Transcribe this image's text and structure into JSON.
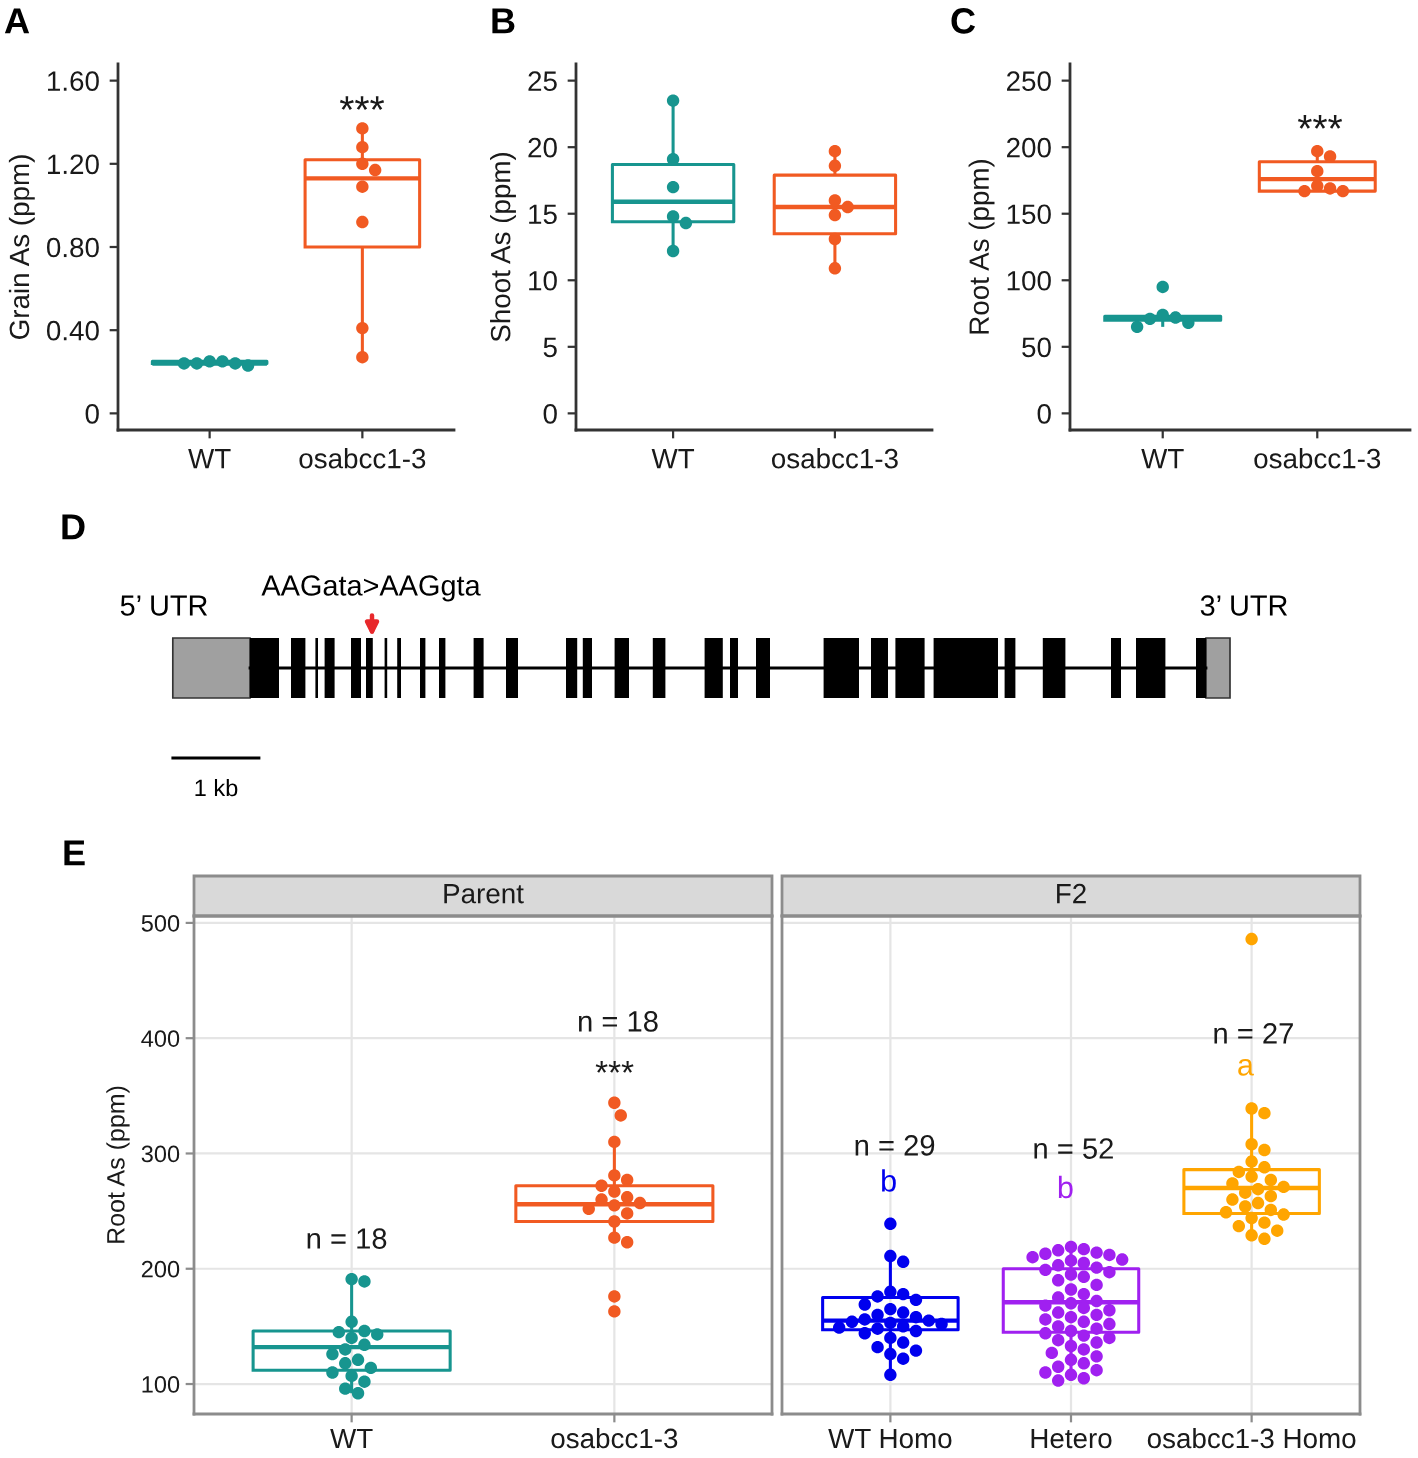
{
  "chart_data": [
    {
      "type": "box",
      "title": "A",
      "ylabel": "Grain As (ppm)",
      "categories": [
        "WT",
        "osabcc1-3"
      ],
      "colors": [
        "#17958f",
        "#f15a22"
      ],
      "boxes": [
        {
          "low": 0.23,
          "q1": 0.24,
          "median": 0.24,
          "q3": 0.25,
          "high": 0.25
        },
        {
          "low": 0.27,
          "q1": 0.8,
          "median": 1.13,
          "q3": 1.22,
          "high": 1.37
        }
      ],
      "series": [
        {
          "type": "scatter",
          "color": "#17958f",
          "x": [
            "WT",
            "WT",
            "WT",
            "WT",
            "WT",
            "WT"
          ],
          "values": [
            0.25,
            0.25,
            0.24,
            0.24,
            0.24,
            0.23
          ]
        },
        {
          "type": "scatter",
          "color": "#f15a22",
          "x": [
            "osabcc1-3",
            "osabcc1-3",
            "osabcc1-3",
            "osabcc1-3",
            "osabcc1-3",
            "osabcc1-3",
            "osabcc1-3",
            "osabcc1-3"
          ],
          "values": [
            1.37,
            1.28,
            1.2,
            1.17,
            1.09,
            0.92,
            0.41,
            0.27
          ]
        }
      ],
      "marker": "circle",
      "ylim": [
        -0.08,
        1.68
      ],
      "yticks": [
        0,
        {
          "value": 0.4,
          "label": "0.40"
        },
        {
          "value": 0.8,
          "label": "0.80"
        },
        {
          "value": 1.2,
          "label": "1.20"
        },
        {
          "value": 1.6,
          "label": "1.60"
        }
      ],
      "annotations": [
        "***"
      ]
    },
    {
      "type": "box",
      "title": "B",
      "ylabel": "Shoot As (ppm)",
      "categories": [
        "WT",
        "osabcc1-3"
      ],
      "colors": [
        "#17958f",
        "#f15a22"
      ],
      "boxes": [
        {
          "low": 12.2,
          "q1": 14.4,
          "median": 15.9,
          "q3": 18.7,
          "high": 23.5
        },
        {
          "low": 10.9,
          "q1": 13.5,
          "median": 15.5,
          "q3": 17.9,
          "high": 19.7
        }
      ],
      "series": [
        {
          "type": "scatter",
          "color": "#17958f",
          "x": [
            "WT",
            "WT",
            "WT",
            "WT",
            "WT",
            "WT"
          ],
          "values": [
            23.5,
            19.1,
            17,
            14.8,
            14.3,
            12.2
          ]
        },
        {
          "type": "scatter",
          "color": "#f15a22",
          "x": [
            "osabcc1-3",
            "osabcc1-3",
            "osabcc1-3",
            "osabcc1-3",
            "osabcc1-3",
            "osabcc1-3",
            "osabcc1-3"
          ],
          "values": [
            19.7,
            18.6,
            16,
            15.5,
            14.9,
            13.1,
            10.9
          ]
        }
      ],
      "marker": "circle",
      "ylim": [
        -1.25,
        26.25
      ],
      "yticks": [
        0,
        5,
        10,
        15,
        20,
        25
      ]
    },
    {
      "type": "box",
      "title": "C",
      "ylabel": "Root As (ppm)",
      "categories": [
        "WT",
        "osabcc1-3"
      ],
      "colors": [
        "#17958f",
        "#f15a22"
      ],
      "boxes": [
        {
          "low": 65,
          "q1": 70,
          "median": 72,
          "q3": 73,
          "high": 75
        },
        {
          "low": 167,
          "q1": 167,
          "median": 176,
          "q3": 189,
          "high": 197
        }
      ],
      "series": [
        {
          "type": "scatter",
          "color": "#17958f",
          "x": [
            "WT",
            "WT",
            "WT",
            "WT",
            "WT",
            "WT"
          ],
          "values": [
            95,
            74,
            72,
            71,
            68,
            65
          ]
        },
        {
          "type": "scatter",
          "color": "#f15a22",
          "x": [
            "osabcc1-3",
            "osabcc1-3",
            "osabcc1-3",
            "osabcc1-3",
            "osabcc1-3",
            "osabcc1-3",
            "osabcc1-3"
          ],
          "values": [
            197,
            193,
            182,
            171,
            169,
            167,
            167
          ]
        }
      ],
      "marker": "circle",
      "ylim": [
        -12.5,
        262.5
      ],
      "yticks": [
        0,
        50,
        100,
        150,
        200,
        250
      ],
      "annotations": [
        "***"
      ]
    },
    {
      "type": "other",
      "title": "D",
      "annotations": [
        "5’ UTR",
        "AAGata>AAGgta",
        "3’ UTR",
        "1 kb"
      ]
    },
    {
      "type": "box",
      "title": "E",
      "subtitle": "Parent",
      "ylabel": "Root As (ppm)",
      "categories": [
        "WT",
        "osabcc1-3"
      ],
      "colors": [
        "#17958f",
        "#f15a22"
      ],
      "boxes": [
        {
          "low": 92,
          "q1": 112,
          "median": 132,
          "q3": 146,
          "high": 191
        },
        {
          "low": 223,
          "q1": 241,
          "median": 256,
          "q3": 272,
          "high": 310
        }
      ],
      "series": [
        {
          "type": "scatter",
          "color": "#17958f",
          "x": [
            "WT",
            "WT",
            "WT",
            "WT",
            "WT",
            "WT",
            "WT",
            "WT",
            "WT",
            "WT",
            "WT",
            "WT",
            "WT",
            "WT",
            "WT",
            "WT",
            "WT",
            "WT"
          ],
          "values": [
            191,
            189,
            154,
            146,
            145,
            143,
            140,
            134,
            130,
            126,
            121,
            118,
            114,
            110,
            107,
            102,
            96,
            92
          ]
        },
        {
          "type": "scatter",
          "color": "#f15a22",
          "x": [
            "osabcc1-3",
            "osabcc1-3",
            "osabcc1-3",
            "osabcc1-3",
            "osabcc1-3",
            "osabcc1-3",
            "osabcc1-3",
            "osabcc1-3",
            "osabcc1-3",
            "osabcc1-3",
            "osabcc1-3",
            "osabcc1-3",
            "osabcc1-3",
            "osabcc1-3",
            "osabcc1-3",
            "osabcc1-3",
            "osabcc1-3",
            "osabcc1-3"
          ],
          "values": [
            344,
            333,
            310,
            281,
            277,
            272,
            267,
            262,
            260,
            257,
            255,
            252,
            248,
            241,
            227,
            223,
            176,
            163
          ]
        }
      ],
      "marker": "circle",
      "ylim": [
        74,
        506
      ],
      "yticks": [
        100,
        200,
        300,
        400,
        500
      ],
      "grid": true,
      "annotations": [
        "n = 18",
        "n = 18",
        "***"
      ]
    },
    {
      "type": "box",
      "subtitle": "F2",
      "categories": [
        "WT Homo",
        "Hetero",
        "osabcc1-3 Homo"
      ],
      "colors": [
        "#0000ee",
        "#a020f0",
        "#ffa500"
      ],
      "boxes": [
        {
          "low": 108,
          "q1": 147,
          "median": 155,
          "q3": 175,
          "high": 209
        },
        {
          "low": 103,
          "q1": 145,
          "median": 171,
          "q3": 200,
          "high": 219
        },
        {
          "low": 226,
          "q1": 248,
          "median": 270,
          "q3": 286,
          "high": 339
        }
      ],
      "series": [
        {
          "type": "scatter",
          "color": "#0000ee",
          "x": [
            "WT Homo",
            "WT Homo",
            "WT Homo",
            "WT Homo",
            "WT Homo",
            "WT Homo",
            "WT Homo",
            "WT Homo",
            "WT Homo",
            "WT Homo",
            "WT Homo",
            "WT Homo",
            "WT Homo",
            "WT Homo",
            "WT Homo",
            "WT Homo",
            "WT Homo",
            "WT Homo",
            "WT Homo",
            "WT Homo",
            "WT Homo",
            "WT Homo",
            "WT Homo",
            "WT Homo",
            "WT Homo",
            "WT Homo",
            "WT Homo",
            "WT Homo",
            "WT Homo"
          ],
          "values": [
            239,
            211,
            206,
            180,
            178,
            176,
            173,
            169,
            165,
            162,
            160,
            158,
            156,
            155,
            154,
            153,
            152,
            150,
            149,
            148,
            146,
            144,
            140,
            136,
            132,
            129,
            126,
            122,
            108
          ]
        },
        {
          "type": "scatter",
          "color": "#a020f0",
          "x": [
            "Hetero",
            "Hetero",
            "Hetero",
            "Hetero",
            "Hetero",
            "Hetero",
            "Hetero",
            "Hetero",
            "Hetero",
            "Hetero",
            "Hetero",
            "Hetero",
            "Hetero",
            "Hetero",
            "Hetero",
            "Hetero",
            "Hetero",
            "Hetero",
            "Hetero",
            "Hetero",
            "Hetero",
            "Hetero",
            "Hetero",
            "Hetero",
            "Hetero",
            "Hetero",
            "Hetero",
            "Hetero",
            "Hetero",
            "Hetero",
            "Hetero",
            "Hetero",
            "Hetero",
            "Hetero",
            "Hetero",
            "Hetero",
            "Hetero",
            "Hetero",
            "Hetero",
            "Hetero",
            "Hetero",
            "Hetero",
            "Hetero",
            "Hetero",
            "Hetero",
            "Hetero",
            "Hetero",
            "Hetero",
            "Hetero",
            "Hetero",
            "Hetero",
            "Hetero"
          ],
          "values": [
            219,
            217,
            216,
            214,
            213,
            212,
            210,
            208,
            207,
            205,
            203,
            201,
            199,
            197,
            195,
            193,
            190,
            186,
            182,
            178,
            175,
            172,
            170,
            168,
            166,
            164,
            162,
            160,
            158,
            156,
            154,
            152,
            150,
            148,
            146,
            144,
            142,
            140,
            138,
            136,
            133,
            130,
            127,
            124,
            121,
            118,
            115,
            112,
            110,
            108,
            105,
            103
          ]
        },
        {
          "type": "scatter",
          "color": "#ffa500",
          "x": [
            "osabcc1-3 Homo",
            "osabcc1-3 Homo",
            "osabcc1-3 Homo",
            "osabcc1-3 Homo",
            "osabcc1-3 Homo",
            "osabcc1-3 Homo",
            "osabcc1-3 Homo",
            "osabcc1-3 Homo",
            "osabcc1-3 Homo",
            "osabcc1-3 Homo",
            "osabcc1-3 Homo",
            "osabcc1-3 Homo",
            "osabcc1-3 Homo",
            "osabcc1-3 Homo",
            "osabcc1-3 Homo",
            "osabcc1-3 Homo",
            "osabcc1-3 Homo",
            "osabcc1-3 Homo",
            "osabcc1-3 Homo",
            "osabcc1-3 Homo",
            "osabcc1-3 Homo",
            "osabcc1-3 Homo",
            "osabcc1-3 Homo",
            "osabcc1-3 Homo",
            "osabcc1-3 Homo",
            "osabcc1-3 Homo",
            "osabcc1-3 Homo"
          ],
          "values": [
            486,
            339,
            335,
            308,
            303,
            293,
            288,
            284,
            280,
            277,
            274,
            271,
            269,
            266,
            263,
            260,
            257,
            254,
            251,
            249,
            247,
            244,
            240,
            237,
            233,
            229,
            226
          ]
        }
      ],
      "marker": "circle",
      "ylim": [
        74,
        506
      ],
      "yticks": [
        100,
        200,
        300,
        400,
        500
      ],
      "tick_labels": "x",
      "grid": true,
      "annotations": [
        "n = 29",
        "b",
        "n = 52",
        "b",
        "n = 27",
        "a"
      ]
    }
  ]
}
